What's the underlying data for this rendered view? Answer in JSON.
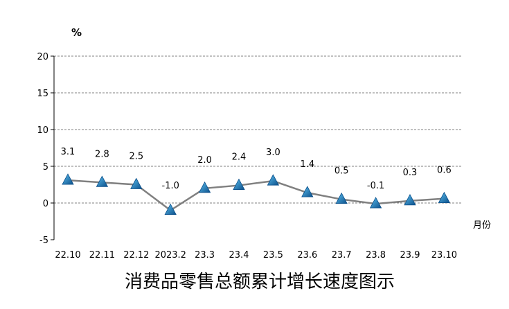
{
  "chart_data": {
    "type": "line",
    "title": "消费品零售总额累计增长速度图示",
    "ylabel": "%",
    "xlabel": "月份",
    "categories": [
      "22.10",
      "22.11",
      "22.12",
      "2023.2",
      "23.3",
      "23.4",
      "23.5",
      "23.6",
      "23.7",
      "23.8",
      "23.9",
      "23.10"
    ],
    "values": [
      3.1,
      2.8,
      2.5,
      -1.0,
      2.0,
      2.4,
      3.0,
      1.4,
      0.5,
      -0.1,
      0.3,
      0.6
    ],
    "data_labels": [
      "3.1",
      "2.8",
      "2.5",
      "-1.0",
      "2.0",
      "2.4",
      "3.0",
      "1.4",
      "0.5",
      "-0.1",
      "0.3",
      "0.6"
    ],
    "ylim": [
      -5,
      20
    ],
    "yticks": [
      "-5",
      "0",
      "5",
      "10",
      "15",
      "20"
    ],
    "grid": true,
    "marker": "triangle",
    "colors": {
      "line": "#808080",
      "marker": "#1a7fc0",
      "grid": "#808080"
    }
  }
}
